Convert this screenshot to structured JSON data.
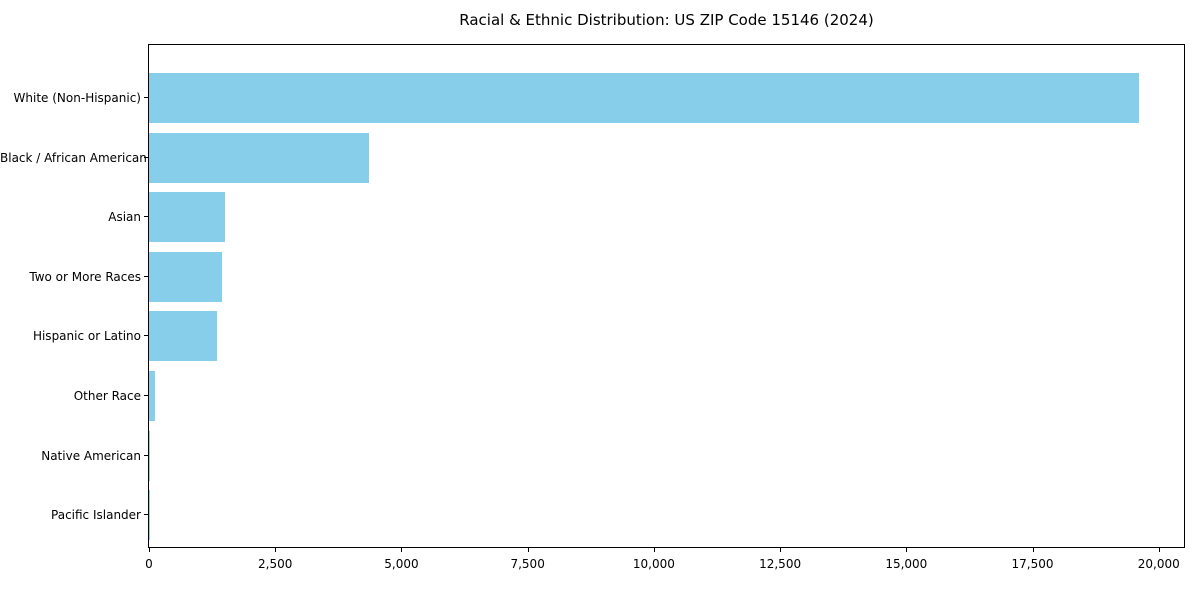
{
  "chart_data": {
    "type": "bar",
    "orientation": "horizontal",
    "title": "Racial & Ethnic Distribution: US ZIP Code 15146 (2024)",
    "categories": [
      "White (Non-Hispanic)",
      "Black / African American",
      "Asian",
      "Two or More Races",
      "Hispanic or Latino",
      "Other Race",
      "Native American",
      "Pacific Islander"
    ],
    "values": [
      19600,
      4350,
      1500,
      1450,
      1350,
      110,
      20,
      10
    ],
    "xlabel": "",
    "ylabel": "",
    "xlim": [
      0,
      20500
    ],
    "xticks": [
      0,
      2500,
      5000,
      7500,
      10000,
      12500,
      15000,
      17500,
      20000
    ],
    "xtick_labels": [
      "0",
      "2,500",
      "5,000",
      "7,500",
      "10,000",
      "12,500",
      "15,000",
      "17,500",
      "20,000"
    ],
    "bar_color": "#87CEEB",
    "axis_color": "#000000",
    "background": "#FFFFFF",
    "grid": false,
    "legend": false
  }
}
